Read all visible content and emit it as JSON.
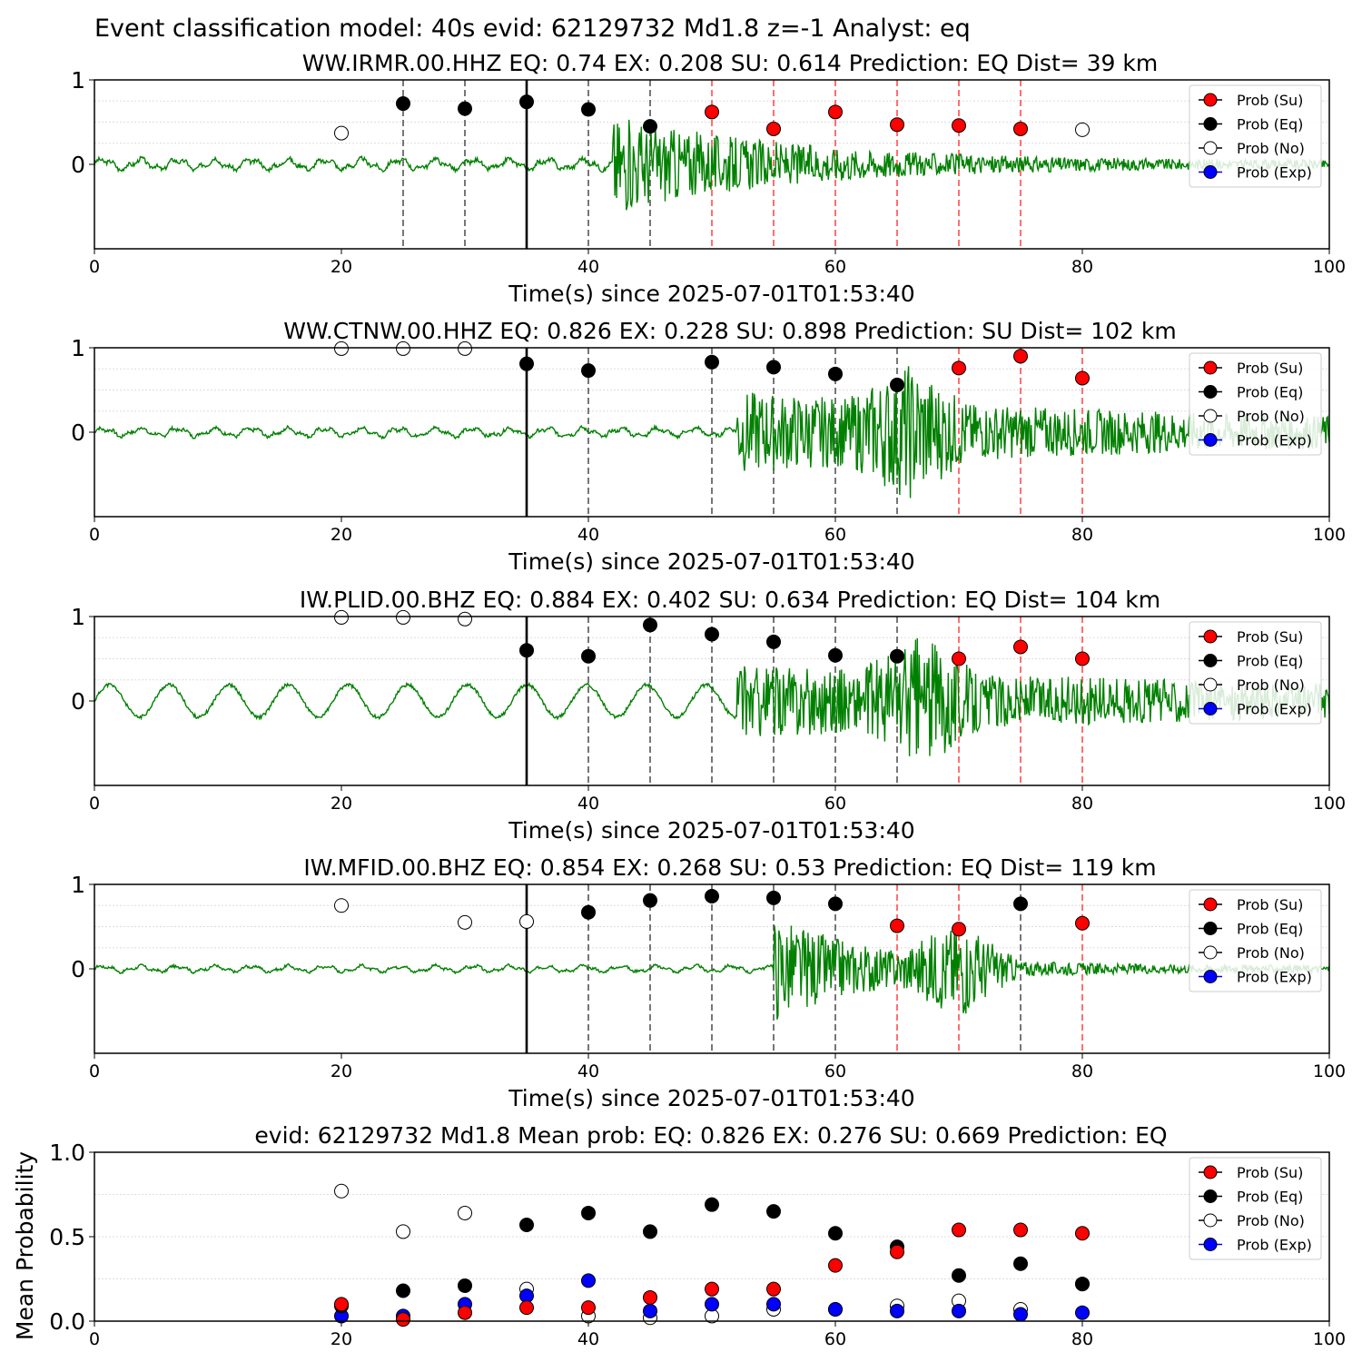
{
  "suptitle": "Event classification model: 40s evid: 62129732 Md1.8 z=-1 Analyst: eq",
  "colors": {
    "waveform": "#008000",
    "su": "#ff0000",
    "eq": "#000000",
    "no": "#ffffff",
    "exp": "#0000ff",
    "red_line": "#ff4d4d",
    "dash_line": "#555555"
  },
  "legend": [
    "Prob (Su)",
    "Prob (Eq)",
    "Prob (No)",
    "Prob (Exp)"
  ],
  "chart_data": [
    {
      "type": "scatter",
      "title": "WW.IRMR.00.HHZ   EQ: 0.74  EX: 0.208  SU: 0.614   Prediction: EQ    Dist= 39 km",
      "xlabel": "Time(s) since 2025-07-01T01:53:40",
      "xlim": [
        0,
        100
      ],
      "ylim": [
        -1,
        1
      ],
      "xticks": [
        "0",
        "20",
        "40",
        "60",
        "80",
        "100"
      ],
      "yticks": [
        "1",
        "0"
      ],
      "pick_time": 35,
      "waveform": {
        "onset": 42,
        "amp_pre": 0.05,
        "amp_post": 0.55,
        "decay": 0.045,
        "seed": 3
      },
      "points": [
        {
          "x": 20,
          "y": 0.37,
          "class": "No"
        },
        {
          "x": 25,
          "y": 0.72,
          "class": "Eq"
        },
        {
          "x": 30,
          "y": 0.66,
          "class": "Eq"
        },
        {
          "x": 35,
          "y": 0.74,
          "class": "Eq"
        },
        {
          "x": 40,
          "y": 0.65,
          "class": "Eq"
        },
        {
          "x": 45,
          "y": 0.45,
          "class": "Eq"
        },
        {
          "x": 50,
          "y": 0.62,
          "class": "Su"
        },
        {
          "x": 55,
          "y": 0.42,
          "class": "Su"
        },
        {
          "x": 60,
          "y": 0.62,
          "class": "Su"
        },
        {
          "x": 65,
          "y": 0.47,
          "class": "Su"
        },
        {
          "x": 70,
          "y": 0.46,
          "class": "Su"
        },
        {
          "x": 75,
          "y": 0.42,
          "class": "Su"
        },
        {
          "x": 80,
          "y": 0.41,
          "class": "No"
        }
      ]
    },
    {
      "type": "scatter",
      "title": "WW.CTNW.00.HHZ   EQ: 0.826  EX: 0.228  SU: 0.898   Prediction: SU    Dist= 102 km",
      "xlabel": "Time(s) since 2025-07-01T01:53:40",
      "xlim": [
        0,
        100
      ],
      "ylim": [
        -1,
        1
      ],
      "xticks": [
        "0",
        "20",
        "40",
        "60",
        "80",
        "100"
      ],
      "yticks": [
        "1",
        "0"
      ],
      "pick_time": 35,
      "waveform": {
        "onset": 52,
        "amp_pre": 0.04,
        "amp_post": 0.45,
        "decay": 0.015,
        "seed": 7,
        "burst": 66
      },
      "points": [
        {
          "x": 20,
          "y": 0.99,
          "class": "No"
        },
        {
          "x": 25,
          "y": 0.99,
          "class": "No"
        },
        {
          "x": 30,
          "y": 0.99,
          "class": "No"
        },
        {
          "x": 35,
          "y": 0.81,
          "class": "Eq"
        },
        {
          "x": 40,
          "y": 0.73,
          "class": "Eq"
        },
        {
          "x": 50,
          "y": 0.83,
          "class": "Eq"
        },
        {
          "x": 55,
          "y": 0.77,
          "class": "Eq"
        },
        {
          "x": 60,
          "y": 0.69,
          "class": "Eq"
        },
        {
          "x": 65,
          "y": 0.56,
          "class": "Eq"
        },
        {
          "x": 70,
          "y": 0.76,
          "class": "Su"
        },
        {
          "x": 75,
          "y": 0.9,
          "class": "Su"
        },
        {
          "x": 80,
          "y": 0.64,
          "class": "Su"
        }
      ]
    },
    {
      "type": "scatter",
      "title": "IW.PLID.00.BHZ   EQ: 0.884  EX: 0.402  SU: 0.634   Prediction: EQ    Dist= 104 km",
      "xlabel": "Time(s) since 2025-07-01T01:53:40",
      "xlim": [
        0,
        100
      ],
      "ylim": [
        -1,
        1
      ],
      "xticks": [
        "0",
        "20",
        "40",
        "60",
        "80",
        "100"
      ],
      "yticks": [
        "1",
        "0"
      ],
      "pick_time": 35,
      "waveform": {
        "onset": 52,
        "amp_pre": 0.12,
        "amp_post": 0.4,
        "decay": 0.012,
        "seed": 11,
        "burst": 67,
        "swell": true
      },
      "points": [
        {
          "x": 20,
          "y": 0.99,
          "class": "No"
        },
        {
          "x": 25,
          "y": 0.99,
          "class": "No"
        },
        {
          "x": 30,
          "y": 0.97,
          "class": "No"
        },
        {
          "x": 35,
          "y": 0.6,
          "class": "Eq"
        },
        {
          "x": 40,
          "y": 0.53,
          "class": "Eq"
        },
        {
          "x": 45,
          "y": 0.9,
          "class": "Eq"
        },
        {
          "x": 50,
          "y": 0.79,
          "class": "Eq"
        },
        {
          "x": 55,
          "y": 0.7,
          "class": "Eq"
        },
        {
          "x": 60,
          "y": 0.54,
          "class": "Eq"
        },
        {
          "x": 65,
          "y": 0.53,
          "class": "Eq"
        },
        {
          "x": 70,
          "y": 0.5,
          "class": "Su"
        },
        {
          "x": 75,
          "y": 0.64,
          "class": "Su"
        },
        {
          "x": 80,
          "y": 0.5,
          "class": "Su"
        }
      ]
    },
    {
      "type": "scatter",
      "title": "IW.MFID.00.BHZ   EQ: 0.854  EX: 0.268  SU: 0.53   Prediction: EQ    Dist= 119 km",
      "xlabel": "Time(s) since 2025-07-01T01:53:40",
      "xlim": [
        0,
        100
      ],
      "ylim": [
        -1,
        1
      ],
      "xticks": [
        "0",
        "20",
        "40",
        "60",
        "80",
        "100"
      ],
      "yticks": [
        "1",
        "0"
      ],
      "pick_time": 35,
      "waveform": {
        "onset": 55,
        "amp_pre": 0.03,
        "amp_post": 0.6,
        "decay": 0.08,
        "seed": 17,
        "burst": 70
      },
      "points": [
        {
          "x": 20,
          "y": 0.75,
          "class": "No"
        },
        {
          "x": 30,
          "y": 0.55,
          "class": "No"
        },
        {
          "x": 35,
          "y": 0.56,
          "class": "No"
        },
        {
          "x": 40,
          "y": 0.67,
          "class": "Eq"
        },
        {
          "x": 45,
          "y": 0.81,
          "class": "Eq"
        },
        {
          "x": 50,
          "y": 0.86,
          "class": "Eq"
        },
        {
          "x": 55,
          "y": 0.84,
          "class": "Eq"
        },
        {
          "x": 60,
          "y": 0.77,
          "class": "Eq"
        },
        {
          "x": 65,
          "y": 0.51,
          "class": "Su"
        },
        {
          "x": 70,
          "y": 0.47,
          "class": "Su"
        },
        {
          "x": 75,
          "y": 0.77,
          "class": "Eq"
        },
        {
          "x": 80,
          "y": 0.54,
          "class": "Su"
        }
      ]
    },
    {
      "type": "scatter",
      "title": "evid: 62129732  Md1.8   Mean prob:   EQ: 0.826  EX: 0.276  SU: 0.669   Prediction: EQ",
      "ylabel": "Mean Probability",
      "xlim": [
        0,
        100
      ],
      "ylim": [
        0,
        1
      ],
      "xticks": [
        "0",
        "20",
        "40",
        "60",
        "80",
        "100"
      ],
      "yticks": [
        "1.0",
        "0.5",
        "0.0"
      ],
      "x": [
        20,
        25,
        30,
        35,
        40,
        45,
        50,
        55,
        60,
        65,
        70,
        75,
        80
      ],
      "series": [
        {
          "name": "Prob (Su)",
          "values": [
            0.1,
            0.01,
            0.05,
            0.08,
            0.08,
            0.14,
            0.19,
            0.19,
            0.33,
            0.41,
            0.54,
            0.54,
            0.52
          ]
        },
        {
          "name": "Prob (Eq)",
          "values": [
            0.09,
            0.18,
            0.21,
            0.57,
            0.64,
            0.53,
            0.69,
            0.65,
            0.52,
            0.44,
            0.27,
            0.34,
            0.22
          ]
        },
        {
          "name": "Prob (No)",
          "values": [
            0.77,
            0.53,
            0.64,
            0.19,
            0.03,
            0.02,
            0.03,
            0.07,
            0.07,
            0.09,
            0.12,
            0.07,
            0.22
          ]
        },
        {
          "name": "Prob (Exp)",
          "values": [
            0.03,
            0.03,
            0.1,
            0.15,
            0.24,
            0.06,
            0.1,
            0.1,
            0.07,
            0.06,
            0.06,
            0.04,
            0.05
          ]
        }
      ]
    }
  ]
}
